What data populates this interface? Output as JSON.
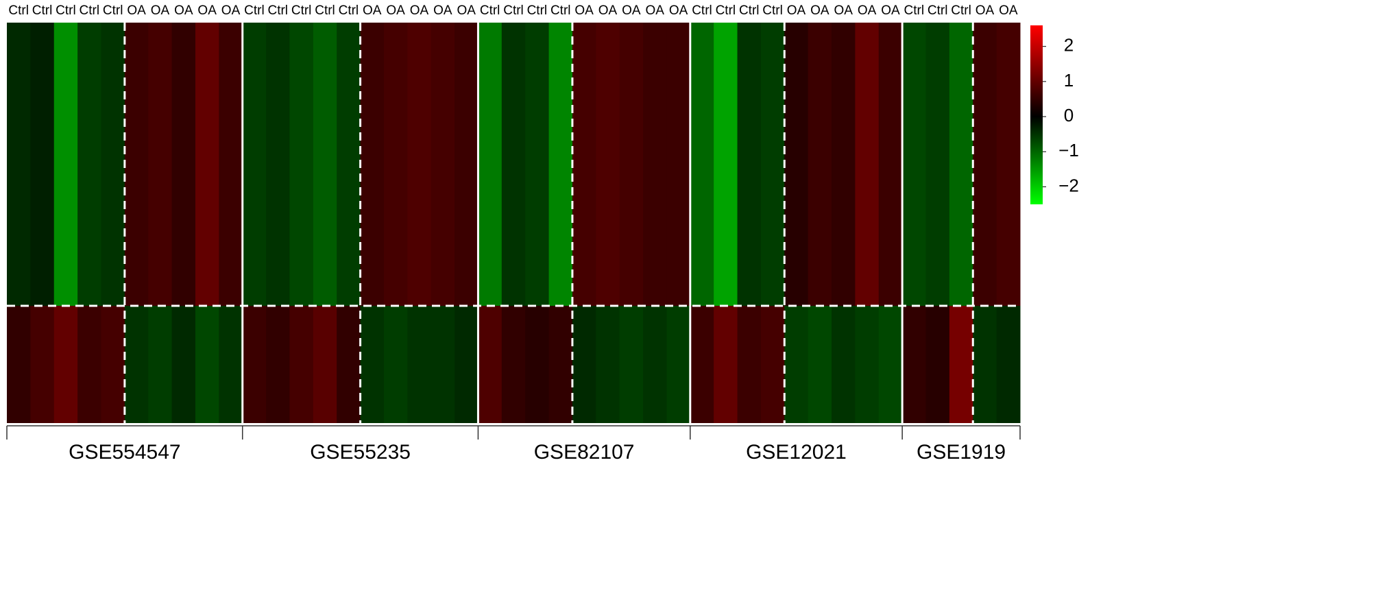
{
  "chart_data": {
    "type": "heatmap",
    "clim": [
      -2.5,
      2.6
    ],
    "colors": {
      "low": "#00ff00",
      "mid": "#000000",
      "high": "#ff0000"
    },
    "cticks": [
      2,
      1,
      0,
      {
        "value": -1,
        "label": "−1"
      },
      {
        "value": -2,
        "label": "−2"
      }
    ],
    "groups": [
      {
        "name": "GSE554547",
        "samples": [
          "Ctrl",
          "Ctrl",
          "Ctrl",
          "Ctrl",
          "Ctrl",
          "OA",
          "OA",
          "OA",
          "OA",
          "OA"
        ],
        "values": [
          [
            -0.4,
            -0.3,
            -1.4,
            -0.6,
            -0.5,
            0.6,
            0.7,
            0.5,
            1.0,
            0.6
          ],
          [
            0.5,
            0.7,
            1.0,
            0.6,
            0.7,
            -0.5,
            -0.6,
            -0.4,
            -0.7,
            -0.5
          ]
        ]
      },
      {
        "name": "GSE55235",
        "samples": [
          "Ctrl",
          "Ctrl",
          "Ctrl",
          "Ctrl",
          "Ctrl",
          "OA",
          "OA",
          "OA",
          "OA",
          "OA"
        ],
        "values": [
          [
            -0.6,
            -0.5,
            -0.7,
            -0.9,
            -0.6,
            0.6,
            0.7,
            0.8,
            0.7,
            0.6
          ],
          [
            0.6,
            0.5,
            0.7,
            0.9,
            0.5,
            -0.5,
            -0.6,
            -0.5,
            -0.5,
            -0.4
          ]
        ]
      },
      {
        "name": "GSE82107",
        "samples": [
          "Ctrl",
          "Ctrl",
          "Ctrl",
          "Ctrl",
          "OA",
          "OA",
          "OA",
          "OA",
          "OA"
        ],
        "values": [
          [
            -1.2,
            -0.5,
            -0.6,
            -1.3,
            0.7,
            0.8,
            0.7,
            0.6,
            0.6
          ],
          [
            0.8,
            0.5,
            0.4,
            0.5,
            -0.4,
            -0.5,
            -0.6,
            -0.5,
            -0.6
          ]
        ]
      },
      {
        "name": "GSE12021",
        "samples": [
          "Ctrl",
          "Ctrl",
          "Ctrl",
          "Ctrl",
          "OA",
          "OA",
          "OA",
          "OA",
          "OA"
        ],
        "values": [
          [
            -1.0,
            -1.6,
            -0.5,
            -0.6,
            0.4,
            0.6,
            0.5,
            1.0,
            0.6
          ],
          [
            0.6,
            1.0,
            0.6,
            0.7,
            -0.6,
            -0.7,
            -0.5,
            -0.6,
            -0.7
          ]
        ]
      },
      {
        "name": "GSE1919",
        "samples": [
          "Ctrl",
          "Ctrl",
          "Ctrl",
          "OA",
          "OA"
        ],
        "values": [
          [
            -0.7,
            -0.6,
            -1.0,
            0.6,
            0.7
          ],
          [
            0.5,
            0.4,
            1.2,
            -0.5,
            -0.4
          ]
        ]
      }
    ]
  }
}
